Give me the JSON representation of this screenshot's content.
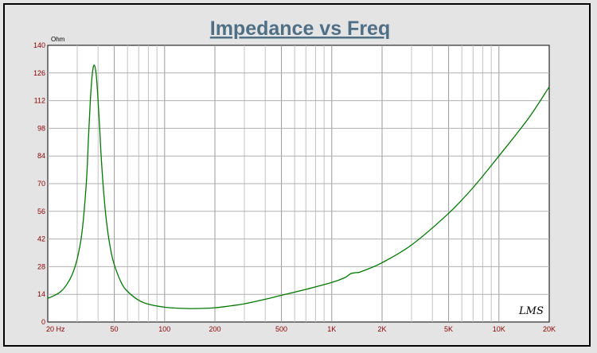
{
  "chart_data": {
    "type": "line",
    "title": "Impedance vs Freq",
    "ylabel_unit": "Ohm",
    "x_scale": "log",
    "xlim": [
      20,
      20000
    ],
    "ylim": [
      0,
      140
    ],
    "grid": true,
    "y_ticks": [
      0,
      14,
      28,
      42,
      56,
      70,
      84,
      98,
      112,
      126,
      140
    ],
    "x_tick_labels": [
      {
        "x": 20,
        "label": "20  Hz"
      },
      {
        "x": 50,
        "label": "50"
      },
      {
        "x": 100,
        "label": "100"
      },
      {
        "x": 200,
        "label": "200"
      },
      {
        "x": 500,
        "label": "500"
      },
      {
        "x": 1000,
        "label": "1K"
      },
      {
        "x": 2000,
        "label": "2K"
      },
      {
        "x": 5000,
        "label": "5K"
      },
      {
        "x": 10000,
        "label": "10K"
      },
      {
        "x": 20000,
        "label": "20K"
      }
    ],
    "series": [
      {
        "color": "#007a00",
        "x": [
          20,
          22,
          24,
          26,
          28,
          30,
          32,
          34,
          35,
          36,
          37,
          38,
          39,
          40,
          41,
          42,
          44,
          46,
          48,
          50,
          55,
          60,
          70,
          80,
          100,
          120,
          150,
          200,
          250,
          300,
          400,
          500,
          700,
          1000,
          1200,
          1300,
          1400,
          1500,
          2000,
          3000,
          5000,
          7000,
          10000,
          15000,
          20000
        ],
        "y": [
          12,
          13.5,
          15.5,
          19,
          24,
          32,
          45,
          70,
          92,
          113,
          126,
          130,
          125,
          112,
          96,
          80,
          58,
          44,
          35,
          29,
          20,
          15.5,
          11,
          9,
          7.5,
          7,
          6.8,
          7.2,
          8.2,
          9.2,
          11.5,
          13.5,
          16.5,
          20,
          22.5,
          24.5,
          25,
          25.5,
          30,
          39,
          55,
          68,
          84,
          103,
          119
        ]
      }
    ],
    "signature": "LMS"
  }
}
